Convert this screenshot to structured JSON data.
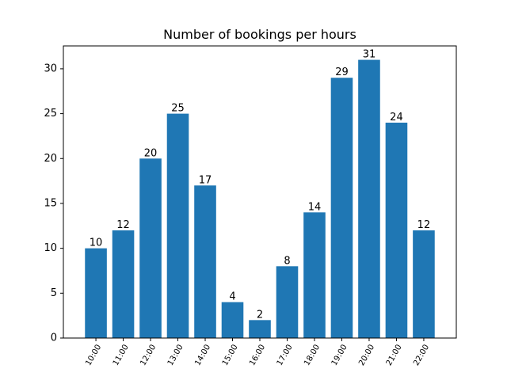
{
  "chart_data": {
    "type": "bar",
    "title": "Number of bookings per hours",
    "xlabel": "",
    "ylabel": "",
    "categories": [
      "10:00",
      "11:00",
      "12:00",
      "13:00",
      "14:00",
      "15:00",
      "16:00",
      "17:00",
      "18:00",
      "19:00",
      "20:00",
      "21:00",
      "22:00"
    ],
    "values": [
      10,
      12,
      20,
      25,
      17,
      4,
      2,
      8,
      14,
      29,
      31,
      24,
      12
    ],
    "ylim": [
      0,
      32.55
    ],
    "yticks": [
      0,
      5,
      10,
      15,
      20,
      25,
      30
    ],
    "bar_color": "#1f77b4",
    "grid": false,
    "data_labels": true,
    "xtick_rotation": 60
  }
}
